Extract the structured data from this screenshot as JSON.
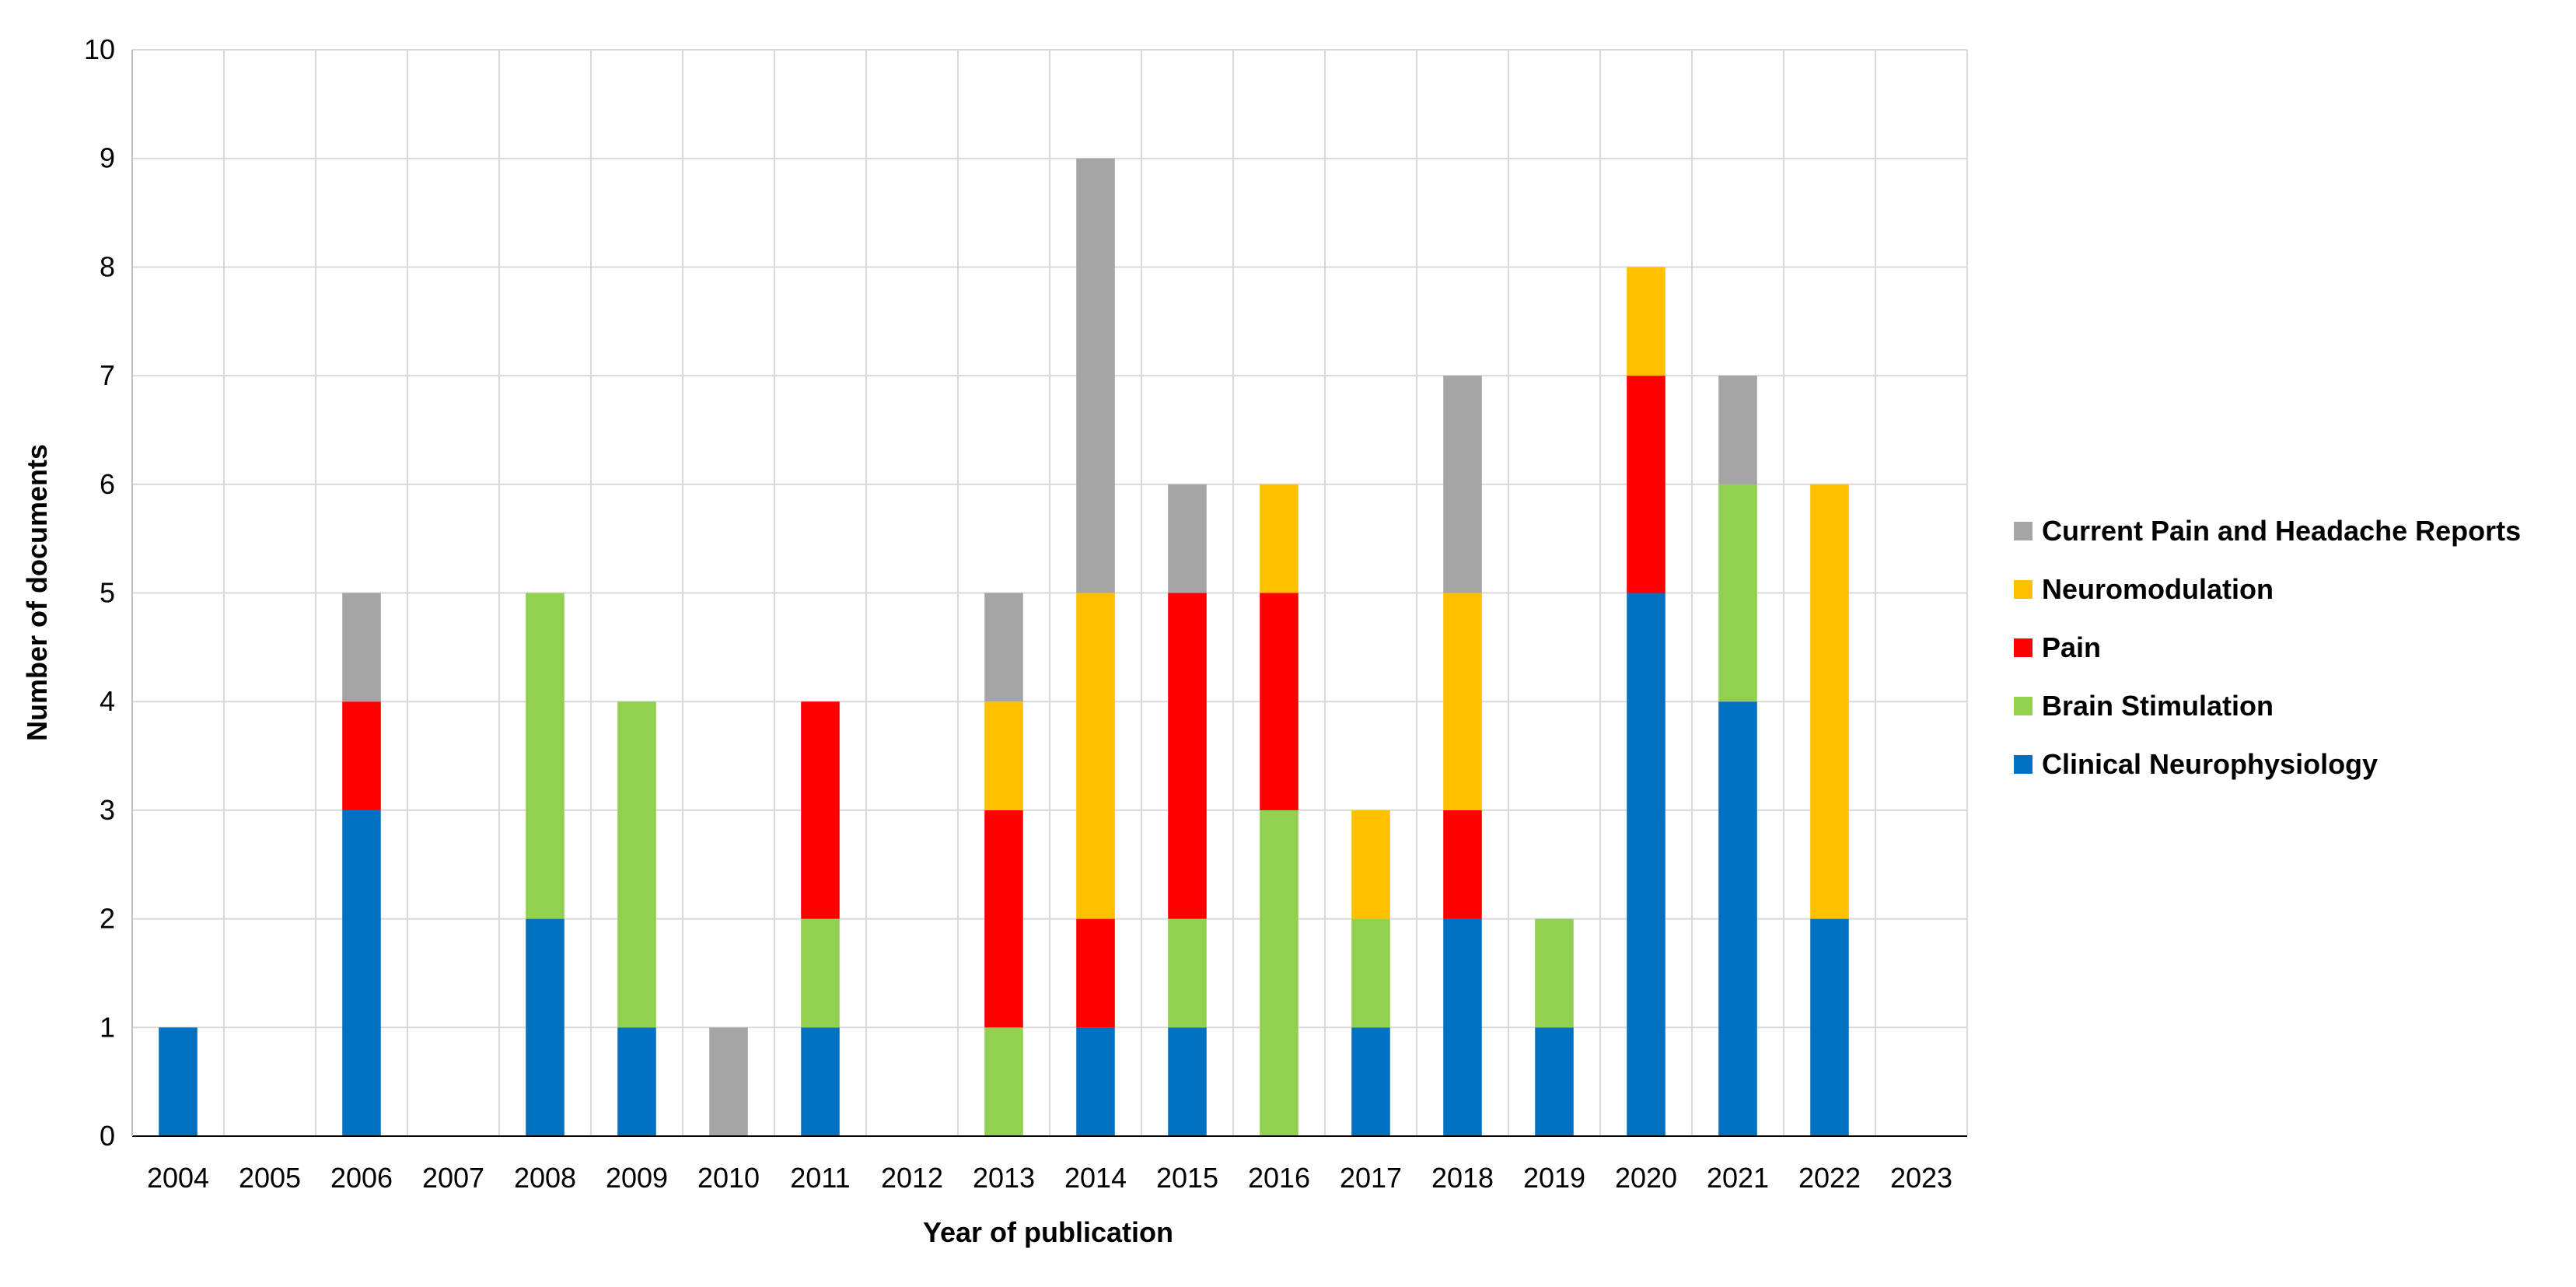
{
  "chart_data": {
    "type": "bar",
    "stacked": true,
    "xlabel": "Year of publication",
    "ylabel": "Number of documents",
    "ylim": [
      0,
      10
    ],
    "yticks": [
      0,
      1,
      2,
      3,
      4,
      5,
      6,
      7,
      8,
      9,
      10
    ],
    "grid": true,
    "legend_position": "right",
    "categories": [
      "2004",
      "2005",
      "2006",
      "2007",
      "2008",
      "2009",
      "2010",
      "2011",
      "2012",
      "2013",
      "2014",
      "2015",
      "2016",
      "2017",
      "2018",
      "2019",
      "2020",
      "2021",
      "2022",
      "2023"
    ],
    "series": [
      {
        "name": "Clinical Neurophysiology",
        "color": "#0070C0",
        "values": [
          1,
          0,
          3,
          0,
          2,
          1,
          0,
          1,
          0,
          0,
          1,
          1,
          0,
          1,
          2,
          1,
          5,
          4,
          2,
          0
        ]
      },
      {
        "name": "Brain Stimulation",
        "color": "#92D050",
        "values": [
          0,
          0,
          0,
          0,
          3,
          3,
          0,
          1,
          0,
          1,
          0,
          1,
          3,
          1,
          0,
          1,
          0,
          2,
          0,
          0
        ]
      },
      {
        "name": "Pain",
        "color": "#FF0000",
        "values": [
          0,
          0,
          1,
          0,
          0,
          0,
          0,
          2,
          0,
          2,
          1,
          3,
          2,
          0,
          1,
          0,
          2,
          0,
          0,
          0
        ]
      },
      {
        "name": "Neuromodulation",
        "color": "#FFC000",
        "values": [
          0,
          0,
          0,
          0,
          0,
          0,
          0,
          0,
          0,
          1,
          3,
          0,
          1,
          1,
          2,
          0,
          1,
          0,
          4,
          0
        ]
      },
      {
        "name": "Current Pain and Headache Reports",
        "color": "#A5A5A5",
        "values": [
          0,
          0,
          1,
          0,
          0,
          0,
          1,
          0,
          0,
          1,
          4,
          1,
          0,
          0,
          2,
          0,
          0,
          1,
          0,
          0
        ]
      }
    ]
  }
}
